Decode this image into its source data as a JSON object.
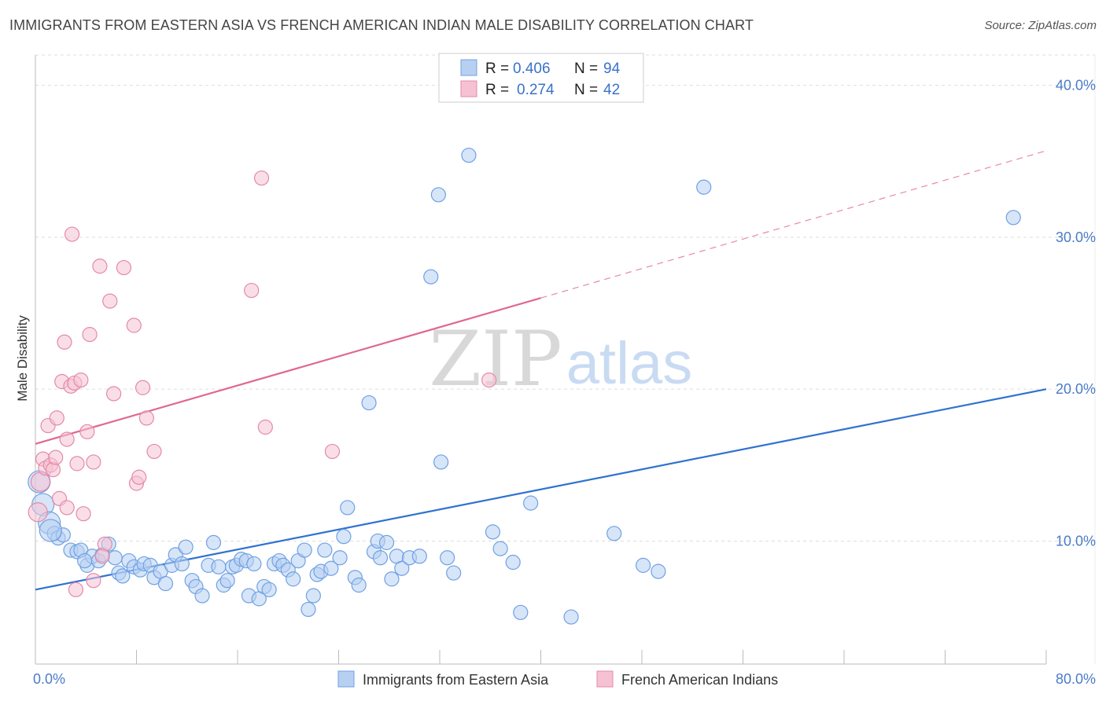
{
  "title": "IMMIGRANTS FROM EASTERN ASIA VS FRENCH AMERICAN INDIAN MALE DISABILITY CORRELATION CHART",
  "source": "Source: ZipAtlas.com",
  "watermark": {
    "zip": "ZIP",
    "atlas": "atlas"
  },
  "legend_top": [
    {
      "r_label": "R =",
      "r_value": "0.406",
      "n_label": "N =",
      "n_value": "94"
    },
    {
      "r_label": "R =",
      "r_value": "0.274",
      "n_label": "N =",
      "n_value": "42"
    }
  ],
  "chart_data": {
    "type": "scatter",
    "title": "IMMIGRANTS FROM EASTERN ASIA VS FRENCH AMERICAN INDIAN MALE DISABILITY CORRELATION CHART",
    "xlabel": "",
    "ylabel": "Male Disability",
    "xlim": [
      0,
      80
    ],
    "ylim": [
      1.9,
      42.0
    ],
    "x_tick_labels": [
      "0.0%",
      "80.0%"
    ],
    "y_ticks": [
      10,
      20,
      30,
      40
    ],
    "y_tick_labels": [
      "10.0%",
      "20.0%",
      "30.0%",
      "40.0%"
    ],
    "grid": true,
    "legend_position": "top-center",
    "series": [
      {
        "name": "Immigrants from Eastern Asia",
        "color": "#6fa1e3",
        "fill": "#b7d0f2",
        "points": [
          [
            0.3,
            13.9
          ],
          [
            0.6,
            12.4
          ],
          [
            1.1,
            11.2
          ],
          [
            1.5,
            10.5
          ],
          [
            1.8,
            10.2
          ],
          [
            2.2,
            10.4
          ],
          [
            2.8,
            9.4
          ],
          [
            3.3,
            9.3
          ],
          [
            3.6,
            9.4
          ],
          [
            4.1,
            8.4
          ],
          [
            4.5,
            9.0
          ],
          [
            5.0,
            8.7
          ],
          [
            5.3,
            9.1
          ],
          [
            5.8,
            9.8
          ],
          [
            6.3,
            8.9
          ],
          [
            6.6,
            7.9
          ],
          [
            6.9,
            7.7
          ],
          [
            7.4,
            8.7
          ],
          [
            7.8,
            8.3
          ],
          [
            8.3,
            8.1
          ],
          [
            8.6,
            8.5
          ],
          [
            9.1,
            8.4
          ],
          [
            9.4,
            7.6
          ],
          [
            9.9,
            8.0
          ],
          [
            10.3,
            7.2
          ],
          [
            10.8,
            8.4
          ],
          [
            11.1,
            9.1
          ],
          [
            11.6,
            8.5
          ],
          [
            11.9,
            9.6
          ],
          [
            12.4,
            7.4
          ],
          [
            12.7,
            7.0
          ],
          [
            13.2,
            6.4
          ],
          [
            13.7,
            8.4
          ],
          [
            14.1,
            9.9
          ],
          [
            14.5,
            8.3
          ],
          [
            14.9,
            7.1
          ],
          [
            15.2,
            7.4
          ],
          [
            15.6,
            8.3
          ],
          [
            15.9,
            8.4
          ],
          [
            16.3,
            8.8
          ],
          [
            16.7,
            8.7
          ],
          [
            16.9,
            6.4
          ],
          [
            17.3,
            8.5
          ],
          [
            17.7,
            6.2
          ],
          [
            18.1,
            7.0
          ],
          [
            18.5,
            6.8
          ],
          [
            18.9,
            8.5
          ],
          [
            19.3,
            8.7
          ],
          [
            19.6,
            8.4
          ],
          [
            20.0,
            8.1
          ],
          [
            20.4,
            7.5
          ],
          [
            20.8,
            8.7
          ],
          [
            21.3,
            9.4
          ],
          [
            21.6,
            5.5
          ],
          [
            22.0,
            6.4
          ],
          [
            22.3,
            7.8
          ],
          [
            22.6,
            8.0
          ],
          [
            22.9,
            9.4
          ],
          [
            23.4,
            8.2
          ],
          [
            24.1,
            8.9
          ],
          [
            24.4,
            10.3
          ],
          [
            24.7,
            12.2
          ],
          [
            25.3,
            7.6
          ],
          [
            25.6,
            7.1
          ],
          [
            26.4,
            19.1
          ],
          [
            26.8,
            9.3
          ],
          [
            27.1,
            10.0
          ],
          [
            27.3,
            8.9
          ],
          [
            27.8,
            9.9
          ],
          [
            28.2,
            7.5
          ],
          [
            28.6,
            9.0
          ],
          [
            29.0,
            8.2
          ],
          [
            29.6,
            8.9
          ],
          [
            30.4,
            9.0
          ],
          [
            31.3,
            27.4
          ],
          [
            31.9,
            32.8
          ],
          [
            32.1,
            15.2
          ],
          [
            32.6,
            8.9
          ],
          [
            33.1,
            7.9
          ],
          [
            34.3,
            35.4
          ],
          [
            36.2,
            10.6
          ],
          [
            36.8,
            9.5
          ],
          [
            37.8,
            8.6
          ],
          [
            38.4,
            5.3
          ],
          [
            39.2,
            12.5
          ],
          [
            42.4,
            5.0
          ],
          [
            45.8,
            10.5
          ],
          [
            48.1,
            8.4
          ],
          [
            49.3,
            8.0
          ],
          [
            52.9,
            33.3
          ],
          [
            77.4,
            31.3
          ],
          [
            1.2,
            10.7
          ],
          [
            3.9,
            8.7
          ]
        ]
      },
      {
        "name": "French American Indians",
        "color": "#e38aa7",
        "fill": "#f6c2d3",
        "points": [
          [
            0.2,
            11.9
          ],
          [
            0.4,
            13.9
          ],
          [
            0.6,
            15.4
          ],
          [
            0.8,
            14.8
          ],
          [
            1.0,
            17.6
          ],
          [
            1.2,
            15.0
          ],
          [
            1.4,
            14.7
          ],
          [
            1.6,
            15.5
          ],
          [
            1.7,
            18.1
          ],
          [
            1.9,
            12.8
          ],
          [
            2.1,
            20.5
          ],
          [
            2.3,
            23.1
          ],
          [
            2.5,
            12.2
          ],
          [
            2.5,
            16.7
          ],
          [
            2.8,
            20.2
          ],
          [
            2.9,
            30.2
          ],
          [
            3.1,
            20.4
          ],
          [
            3.2,
            6.8
          ],
          [
            3.3,
            15.1
          ],
          [
            3.6,
            20.6
          ],
          [
            3.8,
            11.8
          ],
          [
            4.1,
            17.2
          ],
          [
            4.3,
            23.6
          ],
          [
            4.6,
            15.2
          ],
          [
            4.6,
            7.4
          ],
          [
            5.1,
            28.1
          ],
          [
            5.5,
            9.8
          ],
          [
            5.9,
            25.8
          ],
          [
            6.2,
            19.7
          ],
          [
            7.0,
            28.0
          ],
          [
            7.8,
            24.2
          ],
          [
            8.0,
            13.8
          ],
          [
            8.2,
            14.2
          ],
          [
            8.5,
            20.1
          ],
          [
            8.8,
            18.1
          ],
          [
            9.4,
            15.9
          ],
          [
            17.1,
            26.5
          ],
          [
            17.9,
            33.9
          ],
          [
            18.2,
            17.5
          ],
          [
            23.5,
            15.9
          ],
          [
            35.9,
            20.6
          ],
          [
            5.3,
            9.0
          ]
        ]
      }
    ],
    "trendlines": [
      {
        "series": "Immigrants from Eastern Asia",
        "x": [
          0,
          80
        ],
        "y": [
          6.8,
          20.0
        ],
        "style": "solid"
      },
      {
        "series": "French American Indians",
        "x": [
          0,
          40
        ],
        "y": [
          16.4,
          26.0
        ],
        "style": "solid"
      },
      {
        "series": "French American Indians",
        "x": [
          40,
          80
        ],
        "y": [
          26.0,
          35.7
        ],
        "style": "dashed"
      }
    ]
  }
}
